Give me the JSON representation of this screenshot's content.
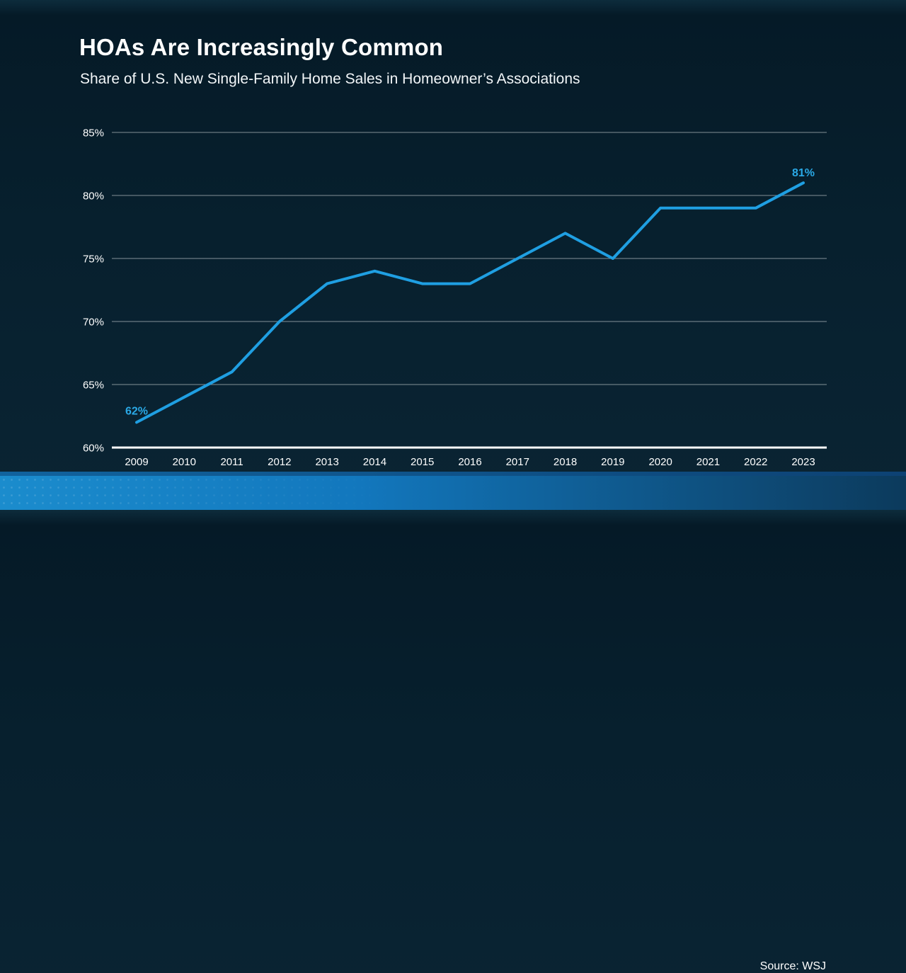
{
  "header": {
    "title": "HOAs Are Increasingly Common",
    "subtitle": "Share of U.S. New Single-Family Home Sales in Homeowner’s Associations"
  },
  "footer": {
    "source": "Source: WSJ"
  },
  "colors": {
    "background": "#07202e",
    "line": "#1f9fe2",
    "point_label": "#2aa9e6",
    "grid": "rgba(255,255,255,0.5)",
    "axis": "#ffffff",
    "footer_band_left": "#1b8ccd",
    "footer_band_right": "#0c3a5c"
  },
  "chart_data": {
    "type": "line",
    "title": "HOAs Are Increasingly Common",
    "subtitle": "Share of U.S. New Single-Family Home Sales in Homeowner’s Associations",
    "x": [
      "2009",
      "2010",
      "2011",
      "2012",
      "2013",
      "2014",
      "2015",
      "2016",
      "2017",
      "2018",
      "2019",
      "2020",
      "2021",
      "2022",
      "2023"
    ],
    "values": [
      62,
      64,
      66,
      70,
      73,
      74,
      73,
      73,
      75,
      77,
      75,
      79,
      79,
      79,
      81
    ],
    "ylim": [
      60,
      85
    ],
    "yticks": [
      60,
      65,
      70,
      75,
      80,
      85
    ],
    "ytick_suffix": "%",
    "xlabel": "",
    "ylabel": "",
    "grid": true,
    "legend_position": "none",
    "line_color": "#1f9fe2",
    "grid_color": "rgba(255,255,255,0.5)",
    "point_labels": {
      "first": "62%",
      "last": "81%"
    },
    "point_label_color": "#2aa9e6",
    "source": "Source: WSJ"
  }
}
